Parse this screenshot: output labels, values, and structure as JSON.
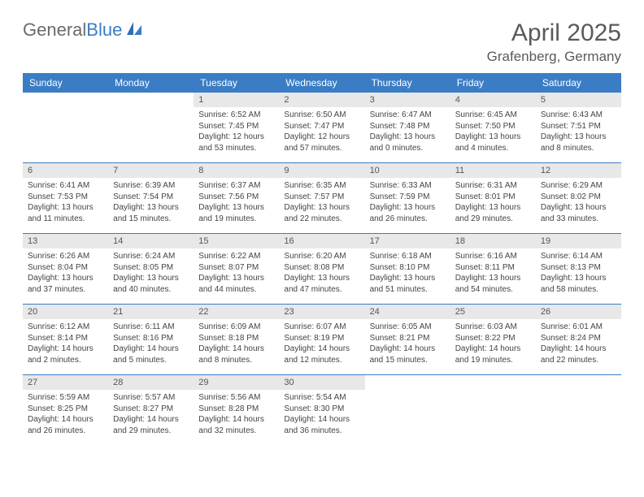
{
  "logo": {
    "text_gray": "General",
    "text_blue": "Blue"
  },
  "title": "April 2025",
  "location": "Grafenberg, Germany",
  "weekdays": [
    "Sunday",
    "Monday",
    "Tuesday",
    "Wednesday",
    "Thursday",
    "Friday",
    "Saturday"
  ],
  "colors": {
    "header_bg": "#3b7dc4",
    "daynum_bg": "#e8e8e8",
    "rule": "#3b7dc4"
  },
  "weeks": [
    [
      null,
      null,
      {
        "n": "1",
        "sr": "Sunrise: 6:52 AM",
        "ss": "Sunset: 7:45 PM",
        "dl": "Daylight: 12 hours and 53 minutes."
      },
      {
        "n": "2",
        "sr": "Sunrise: 6:50 AM",
        "ss": "Sunset: 7:47 PM",
        "dl": "Daylight: 12 hours and 57 minutes."
      },
      {
        "n": "3",
        "sr": "Sunrise: 6:47 AM",
        "ss": "Sunset: 7:48 PM",
        "dl": "Daylight: 13 hours and 0 minutes."
      },
      {
        "n": "4",
        "sr": "Sunrise: 6:45 AM",
        "ss": "Sunset: 7:50 PM",
        "dl": "Daylight: 13 hours and 4 minutes."
      },
      {
        "n": "5",
        "sr": "Sunrise: 6:43 AM",
        "ss": "Sunset: 7:51 PM",
        "dl": "Daylight: 13 hours and 8 minutes."
      }
    ],
    [
      {
        "n": "6",
        "sr": "Sunrise: 6:41 AM",
        "ss": "Sunset: 7:53 PM",
        "dl": "Daylight: 13 hours and 11 minutes."
      },
      {
        "n": "7",
        "sr": "Sunrise: 6:39 AM",
        "ss": "Sunset: 7:54 PM",
        "dl": "Daylight: 13 hours and 15 minutes."
      },
      {
        "n": "8",
        "sr": "Sunrise: 6:37 AM",
        "ss": "Sunset: 7:56 PM",
        "dl": "Daylight: 13 hours and 19 minutes."
      },
      {
        "n": "9",
        "sr": "Sunrise: 6:35 AM",
        "ss": "Sunset: 7:57 PM",
        "dl": "Daylight: 13 hours and 22 minutes."
      },
      {
        "n": "10",
        "sr": "Sunrise: 6:33 AM",
        "ss": "Sunset: 7:59 PM",
        "dl": "Daylight: 13 hours and 26 minutes."
      },
      {
        "n": "11",
        "sr": "Sunrise: 6:31 AM",
        "ss": "Sunset: 8:01 PM",
        "dl": "Daylight: 13 hours and 29 minutes."
      },
      {
        "n": "12",
        "sr": "Sunrise: 6:29 AM",
        "ss": "Sunset: 8:02 PM",
        "dl": "Daylight: 13 hours and 33 minutes."
      }
    ],
    [
      {
        "n": "13",
        "sr": "Sunrise: 6:26 AM",
        "ss": "Sunset: 8:04 PM",
        "dl": "Daylight: 13 hours and 37 minutes."
      },
      {
        "n": "14",
        "sr": "Sunrise: 6:24 AM",
        "ss": "Sunset: 8:05 PM",
        "dl": "Daylight: 13 hours and 40 minutes."
      },
      {
        "n": "15",
        "sr": "Sunrise: 6:22 AM",
        "ss": "Sunset: 8:07 PM",
        "dl": "Daylight: 13 hours and 44 minutes."
      },
      {
        "n": "16",
        "sr": "Sunrise: 6:20 AM",
        "ss": "Sunset: 8:08 PM",
        "dl": "Daylight: 13 hours and 47 minutes."
      },
      {
        "n": "17",
        "sr": "Sunrise: 6:18 AM",
        "ss": "Sunset: 8:10 PM",
        "dl": "Daylight: 13 hours and 51 minutes."
      },
      {
        "n": "18",
        "sr": "Sunrise: 6:16 AM",
        "ss": "Sunset: 8:11 PM",
        "dl": "Daylight: 13 hours and 54 minutes."
      },
      {
        "n": "19",
        "sr": "Sunrise: 6:14 AM",
        "ss": "Sunset: 8:13 PM",
        "dl": "Daylight: 13 hours and 58 minutes."
      }
    ],
    [
      {
        "n": "20",
        "sr": "Sunrise: 6:12 AM",
        "ss": "Sunset: 8:14 PM",
        "dl": "Daylight: 14 hours and 2 minutes."
      },
      {
        "n": "21",
        "sr": "Sunrise: 6:11 AM",
        "ss": "Sunset: 8:16 PM",
        "dl": "Daylight: 14 hours and 5 minutes."
      },
      {
        "n": "22",
        "sr": "Sunrise: 6:09 AM",
        "ss": "Sunset: 8:18 PM",
        "dl": "Daylight: 14 hours and 8 minutes."
      },
      {
        "n": "23",
        "sr": "Sunrise: 6:07 AM",
        "ss": "Sunset: 8:19 PM",
        "dl": "Daylight: 14 hours and 12 minutes."
      },
      {
        "n": "24",
        "sr": "Sunrise: 6:05 AM",
        "ss": "Sunset: 8:21 PM",
        "dl": "Daylight: 14 hours and 15 minutes."
      },
      {
        "n": "25",
        "sr": "Sunrise: 6:03 AM",
        "ss": "Sunset: 8:22 PM",
        "dl": "Daylight: 14 hours and 19 minutes."
      },
      {
        "n": "26",
        "sr": "Sunrise: 6:01 AM",
        "ss": "Sunset: 8:24 PM",
        "dl": "Daylight: 14 hours and 22 minutes."
      }
    ],
    [
      {
        "n": "27",
        "sr": "Sunrise: 5:59 AM",
        "ss": "Sunset: 8:25 PM",
        "dl": "Daylight: 14 hours and 26 minutes."
      },
      {
        "n": "28",
        "sr": "Sunrise: 5:57 AM",
        "ss": "Sunset: 8:27 PM",
        "dl": "Daylight: 14 hours and 29 minutes."
      },
      {
        "n": "29",
        "sr": "Sunrise: 5:56 AM",
        "ss": "Sunset: 8:28 PM",
        "dl": "Daylight: 14 hours and 32 minutes."
      },
      {
        "n": "30",
        "sr": "Sunrise: 5:54 AM",
        "ss": "Sunset: 8:30 PM",
        "dl": "Daylight: 14 hours and 36 minutes."
      },
      null,
      null,
      null
    ]
  ]
}
